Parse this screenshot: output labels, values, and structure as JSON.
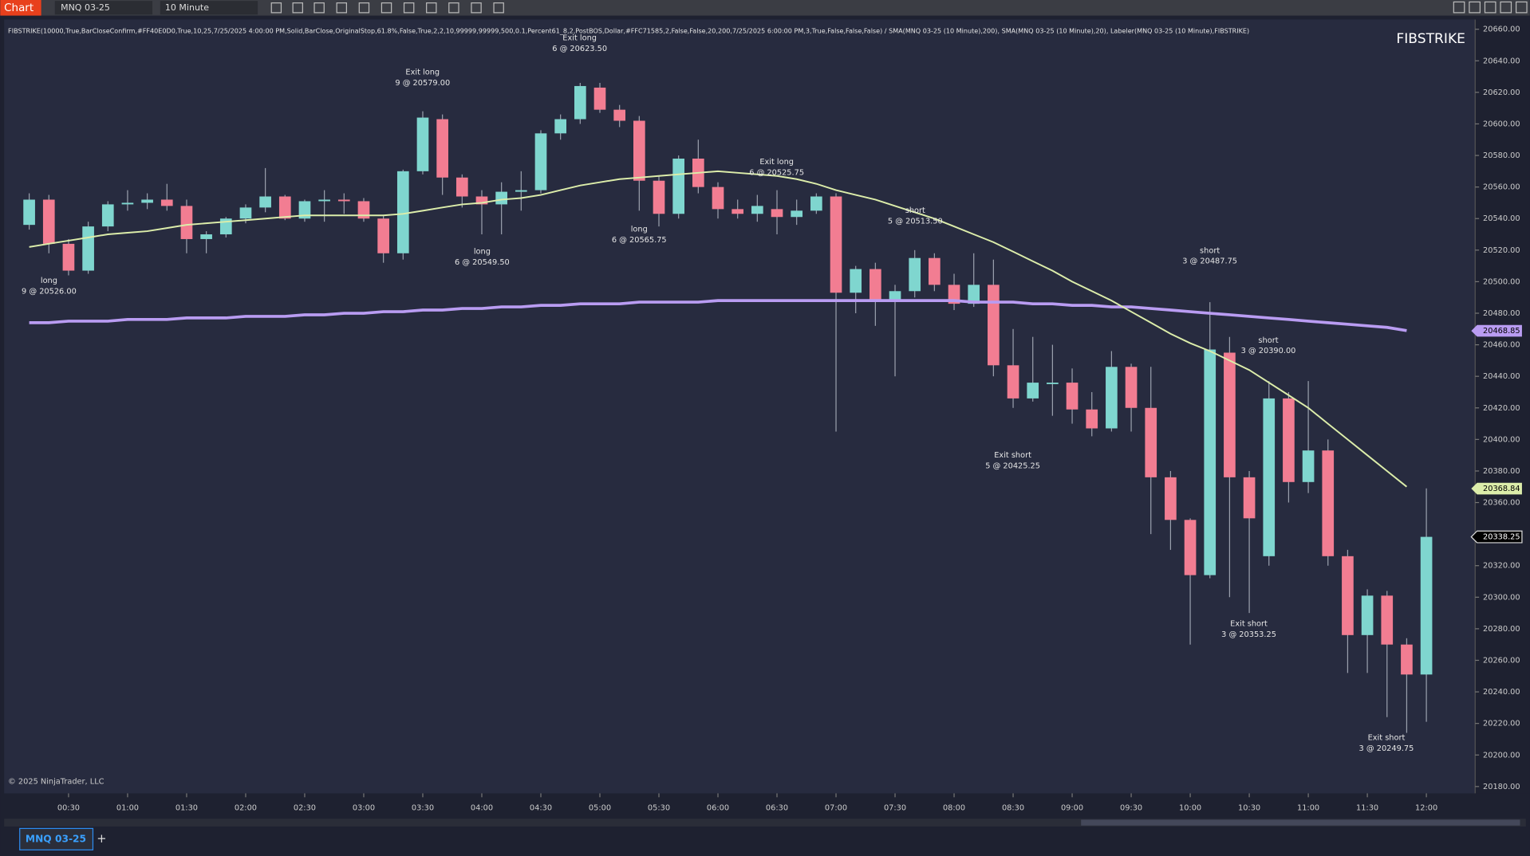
{
  "toolbar": {
    "app": "Chart",
    "instrument": "MNQ 03-25",
    "interval": "10 Minute"
  },
  "indicator_text": "FIBSTRIKE(10000,True,BarCloseConfirm,#FF40E0D0,True,10,25,7/25/2025 4:00:00 PM,Solid,BarClose,OriginalStop,61.8%,False,True,2,2,10,99999,99999,500,0.1,Percent61_8,2,PostBOS,Dollar,#FFC71585,2,False,False,20,200,7/25/2025 6:00:00 PM,3,True,False,False,False) / SMA(MNQ 03-25 (10 Minute),200), SMA(MNQ 03-25 (10 Minute),20), Labeler(MNQ 03-25 (10 Minute),FIBSTRIKE)",
  "watermark": "FIBSTRIKE",
  "copyright": "© 2025 NinjaTrader, LLC",
  "tab": "MNQ 03-25",
  "tab_add": "+",
  "chart_data": {
    "type": "candlestick",
    "up_color": "#7fd6cf",
    "down_color": "#f27d92",
    "categories": [
      null,
      null,
      "00:30",
      null,
      null,
      "01:00",
      null,
      null,
      "01:30",
      null,
      null,
      "02:00",
      null,
      null,
      "02:30",
      null,
      null,
      "03:00",
      null,
      null,
      "03:30",
      null,
      null,
      "04:00",
      null,
      null,
      "04:30",
      null,
      null,
      "05:00",
      null,
      null,
      "05:30",
      null,
      null,
      "06:00",
      null,
      null,
      "06:30",
      null,
      null,
      "07:00",
      null,
      null,
      "07:30",
      null,
      null,
      "08:00",
      null,
      null,
      "08:30",
      null,
      null,
      "09:00",
      null,
      null,
      "09:30",
      null,
      null,
      "10:00",
      null,
      null,
      "10:30",
      null,
      null,
      "11:00",
      null,
      null,
      "11:30",
      null,
      null,
      "12:00"
    ],
    "open": [
      20536,
      20552,
      20524,
      20507,
      20535,
      20549,
      20550,
      20552,
      20548,
      20527,
      20530,
      20540,
      20547,
      20554,
      20540,
      20551,
      20552,
      20551,
      20540,
      20518,
      20570,
      20603,
      20566,
      20554,
      20549,
      20557,
      20558,
      20594,
      20603,
      20623,
      20609,
      20602,
      20564,
      20543,
      20578,
      20560,
      20546,
      20543,
      20546,
      20541,
      20545,
      20554,
      20493,
      20508,
      20488,
      20494,
      20515,
      20498,
      20486,
      20498,
      20447,
      20426,
      20436,
      20436,
      20419,
      20407,
      20446,
      20420,
      20376,
      20349,
      20314,
      20455,
      20376,
      20326,
      20426,
      20373,
      20393,
      20326,
      20276,
      20301,
      20270,
      20251
    ],
    "high": [
      20556,
      20555,
      20527,
      20538,
      20551,
      20558,
      20556,
      20562,
      20552,
      20532,
      20541,
      20549,
      20572,
      20555,
      20552,
      20558,
      20556,
      20553,
      20542,
      20571,
      20608,
      20606,
      20568,
      20558,
      20563,
      20570,
      20596,
      20606,
      20626,
      20626,
      20612,
      20605,
      20567,
      20580,
      20590,
      20563,
      20552,
      20555,
      20558,
      20552,
      20556,
      20556,
      20510,
      20512,
      20498,
      20520,
      20518,
      20505,
      20518,
      20514,
      20470,
      20465,
      20460,
      20445,
      20430,
      20456,
      20448,
      20446,
      20380,
      20350,
      20487,
      20465,
      20380,
      20437,
      20430,
      20437,
      20400,
      20330,
      20305,
      20304,
      20274,
      20369
    ],
    "low": [
      20533,
      20518,
      20504,
      20505,
      20532,
      20545,
      20546,
      20545,
      20518,
      20518,
      20528,
      20537,
      20544,
      20539,
      20538,
      20538,
      20543,
      20538,
      20512,
      20514,
      20568,
      20555,
      20547,
      20530,
      20530,
      20545,
      20556,
      20590,
      20600,
      20607,
      20598,
      20545,
      20535,
      20540,
      20556,
      20540,
      20540,
      20538,
      20530,
      20536,
      20543,
      20405,
      20480,
      20472,
      20440,
      20490,
      20494,
      20482,
      20484,
      20440,
      20420,
      20424,
      20415,
      20410,
      20402,
      20405,
      20405,
      20340,
      20330,
      20270,
      20312,
      20300,
      20290,
      20320,
      20360,
      20366,
      20320,
      20252,
      20252,
      20224,
      20214,
      20221
    ],
    "close": [
      20552,
      20524,
      20507,
      20535,
      20549,
      20550,
      20552,
      20548,
      20527,
      20530,
      20540,
      20547,
      20554,
      20540,
      20551,
      20552,
      20551,
      20540,
      20518,
      20570,
      20604,
      20566,
      20554,
      20549,
      20557,
      20558,
      20594,
      20603,
      20624,
      20609,
      20602,
      20564,
      20543,
      20578,
      20560,
      20546,
      20543,
      20548,
      20541,
      20545,
      20554,
      20493,
      20508,
      20488,
      20494,
      20515,
      20498,
      20486,
      20498,
      20447,
      20426,
      20436,
      20436,
      20419,
      20407,
      20446,
      20420,
      20376,
      20349,
      20314,
      20457,
      20376,
      20350,
      20426,
      20373,
      20393,
      20326,
      20276,
      20301,
      20270,
      20251,
      20338.25
    ],
    "series": [
      {
        "name": "SMA(200)",
        "color": "#b99cf2",
        "values": [
          20474,
          20474,
          20475,
          20475,
          20475,
          20476,
          20476,
          20476,
          20477,
          20477,
          20477,
          20478,
          20478,
          20478,
          20479,
          20479,
          20480,
          20480,
          20481,
          20481,
          20482,
          20482,
          20483,
          20483,
          20484,
          20484,
          20485,
          20485,
          20486,
          20486,
          20486,
          20487,
          20487,
          20487,
          20487,
          20488,
          20488,
          20488,
          20488,
          20488,
          20488,
          20488,
          20488,
          20488,
          20488,
          20488,
          20488,
          20488,
          20487,
          20487,
          20487,
          20486,
          20486,
          20485,
          20485,
          20484,
          20484,
          20483,
          20482,
          20481,
          20480,
          20479,
          20478,
          20477,
          20476,
          20475,
          20474,
          20473,
          20472,
          20471,
          20469,
          null
        ]
      },
      {
        "name": "SMA(20)",
        "color": "#dcedaa",
        "values": [
          20522,
          20524,
          20526,
          20528,
          20530,
          20531,
          20532,
          20534,
          20536,
          20537,
          20538,
          20539,
          20540,
          20541,
          20542,
          20542,
          20542,
          20542,
          20542,
          20543,
          20545,
          20547,
          20549,
          20550,
          20552,
          20553,
          20555,
          20558,
          20561,
          20563,
          20565,
          20566,
          20567,
          20568,
          20569,
          20570,
          20569,
          20568,
          20567,
          20565,
          20562,
          20558,
          20555,
          20552,
          20548,
          20544,
          20540,
          20535,
          20530,
          20525,
          20519,
          20513,
          20507,
          20500,
          20494,
          20488,
          20481,
          20474,
          20467,
          20461,
          20456,
          20450,
          20444,
          20436,
          20428,
          20420,
          20410,
          20400,
          20390,
          20380,
          20370,
          null
        ]
      }
    ],
    "price_tags": [
      {
        "value": 20468.85,
        "label": "20468.85",
        "color": "#b99cf2"
      },
      {
        "value": 20368.84,
        "label": "20368.84",
        "color": "#dcedaa"
      },
      {
        "value": 20338.25,
        "label": "20338.25",
        "color": "#000000"
      }
    ],
    "annotations": [
      {
        "lines": [
          "long",
          "9 @ 20526.00"
        ]
      },
      {
        "lines": [
          "Exit long",
          "9 @ 20579.00"
        ]
      },
      {
        "lines": [
          "long",
          "6 @ 20549.50"
        ]
      },
      {
        "lines": [
          "Exit long",
          "6 @ 20623.50"
        ]
      },
      {
        "lines": [
          "long",
          "6 @ 20565.75"
        ]
      },
      {
        "lines": [
          "Exit long",
          "6 @ 20525.75"
        ]
      },
      {
        "lines": [
          "short",
          "5 @ 20513.50"
        ]
      },
      {
        "lines": [
          "Exit short",
          "5 @ 20425.25"
        ]
      },
      {
        "lines": [
          "short",
          "3 @ 20487.75"
        ]
      },
      {
        "lines": [
          "short",
          "3 @ 20390.00"
        ]
      },
      {
        "lines": [
          "Exit short",
          "3 @ 20353.25"
        ]
      },
      {
        "lines": [
          "Exit short",
          "3 @ 20249.75"
        ]
      }
    ],
    "ylim": [
      20180,
      20660
    ],
    "yticks": [
      {
        "value": 20180,
        "label": "20180.00"
      },
      {
        "value": 20200,
        "label": "20200.00"
      },
      {
        "value": 20220,
        "label": "20220.00"
      },
      {
        "value": 20240,
        "label": "20240.00"
      },
      {
        "value": 20260,
        "label": "20260.00"
      },
      {
        "value": 20280,
        "label": "20280.00"
      },
      {
        "value": 20300,
        "label": "20300.00"
      },
      {
        "value": 20320,
        "label": "20320.00"
      },
      {
        "value": 20340,
        "label": "20340.00"
      },
      {
        "value": 20360,
        "label": "20360.00"
      },
      {
        "value": 20380,
        "label": "20380.00"
      },
      {
        "value": 20400,
        "label": "20400.00"
      },
      {
        "value": 20420,
        "label": "20420.00"
      },
      {
        "value": 20440,
        "label": "20440.00"
      },
      {
        "value": 20460,
        "label": "20460.00"
      },
      {
        "value": 20480,
        "label": "20480.00"
      },
      {
        "value": 20500,
        "label": "20500.00"
      },
      {
        "value": 20520,
        "label": "20520.00"
      },
      {
        "value": 20540,
        "label": "20540.00"
      },
      {
        "value": 20560,
        "label": "20560.00"
      },
      {
        "value": 20580,
        "label": "20580.00"
      },
      {
        "value": 20600,
        "label": "20600.00"
      },
      {
        "value": 20620,
        "label": "20620.00"
      },
      {
        "value": 20640,
        "label": "20640.00"
      },
      {
        "value": 20660,
        "label": "20660.00"
      }
    ]
  }
}
